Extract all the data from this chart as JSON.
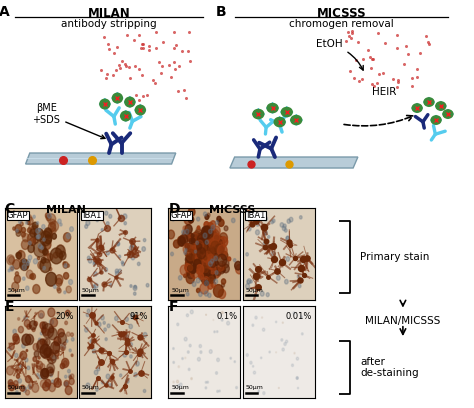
{
  "panel_A_title": "MILAN",
  "panel_A_subtitle": "antibody stripping",
  "panel_B_title": "MICSSS",
  "panel_B_subtitle": "chromogen removal",
  "panel_C_title": "MILAN",
  "panel_D_title": "MICSSS",
  "GFAP_label": "GFAP",
  "IBA1_label": "IBA1",
  "bME_SDS": "βME\n+SDS",
  "EtOH": "EtOH",
  "HEIR": "HEIR",
  "E_pct_left": "20%",
  "E_pct_right": "91%",
  "F_pct_left": "0.1%",
  "F_pct_right": "0.01%",
  "scale_bar": "50μm",
  "right_label1": "Primary stain",
  "right_arrow1": "↓",
  "right_label2": "MILAN/MICSSS",
  "right_arrow2": "↓",
  "right_label3": "after\nde-staining",
  "bg_color": "#ffffff",
  "antibody_blue_light": "#55ccee",
  "antibody_blue_dark": "#1a2a7a",
  "antibody_green": "#3a8a3a",
  "chromogen_red": "#cc3333",
  "slide_color": "#b8ccd8",
  "slide_border": "#7a9aaa"
}
